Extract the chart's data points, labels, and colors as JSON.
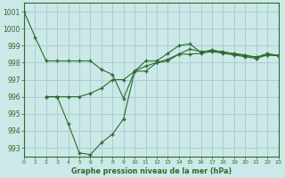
{
  "line1_x": [
    0,
    1,
    2,
    3,
    4,
    5,
    6,
    7,
    8,
    9,
    10,
    11,
    12,
    13,
    14,
    15,
    16,
    17,
    18,
    19,
    20,
    21,
    22,
    23
  ],
  "line1_y": [
    1001,
    999.5,
    998.1,
    998.1,
    998.1,
    998.1,
    998.1,
    997.6,
    997.3,
    995.9,
    997.5,
    998.1,
    998.1,
    998.55,
    999.0,
    999.1,
    998.6,
    998.75,
    998.6,
    998.55,
    998.45,
    998.3,
    998.55,
    998.4
  ],
  "line2_x": [
    2,
    3,
    4,
    5,
    6,
    7,
    8,
    9,
    10,
    11,
    12,
    13,
    14,
    15,
    16,
    17,
    18,
    19,
    20,
    21,
    22,
    23
  ],
  "line2_y": [
    996.0,
    996.0,
    994.4,
    992.7,
    992.6,
    993.3,
    993.8,
    994.7,
    997.5,
    997.5,
    998.0,
    998.1,
    998.5,
    998.5,
    998.55,
    998.65,
    998.55,
    998.45,
    998.35,
    998.25,
    998.45,
    998.4
  ],
  "line3_x": [
    2,
    3,
    4,
    5,
    6,
    7,
    8,
    9,
    10,
    11,
    12,
    13,
    14,
    15,
    16,
    17,
    18,
    19,
    20,
    21,
    22,
    23
  ],
  "line3_y": [
    996.0,
    996.0,
    996.0,
    996.0,
    996.2,
    996.5,
    997.0,
    997.0,
    997.5,
    997.8,
    998.0,
    998.2,
    998.5,
    998.8,
    998.65,
    998.7,
    998.65,
    998.5,
    998.4,
    998.35,
    998.45,
    998.45
  ],
  "line_color": "#2d6a2d",
  "bg_color": "#cce8e8",
  "grid_color": "#aacfcf",
  "xlabel": "Graphe pression niveau de la mer (hPa)",
  "xlabel_color": "#2d6a2d",
  "xlim": [
    0,
    23
  ],
  "ylim": [
    992.5,
    1001.5
  ],
  "yticks": [
    993,
    994,
    995,
    996,
    997,
    998,
    999,
    1000,
    1001
  ],
  "xticks": [
    0,
    1,
    2,
    3,
    4,
    5,
    6,
    7,
    8,
    9,
    10,
    11,
    12,
    13,
    14,
    15,
    16,
    17,
    18,
    19,
    20,
    21,
    22,
    23
  ]
}
